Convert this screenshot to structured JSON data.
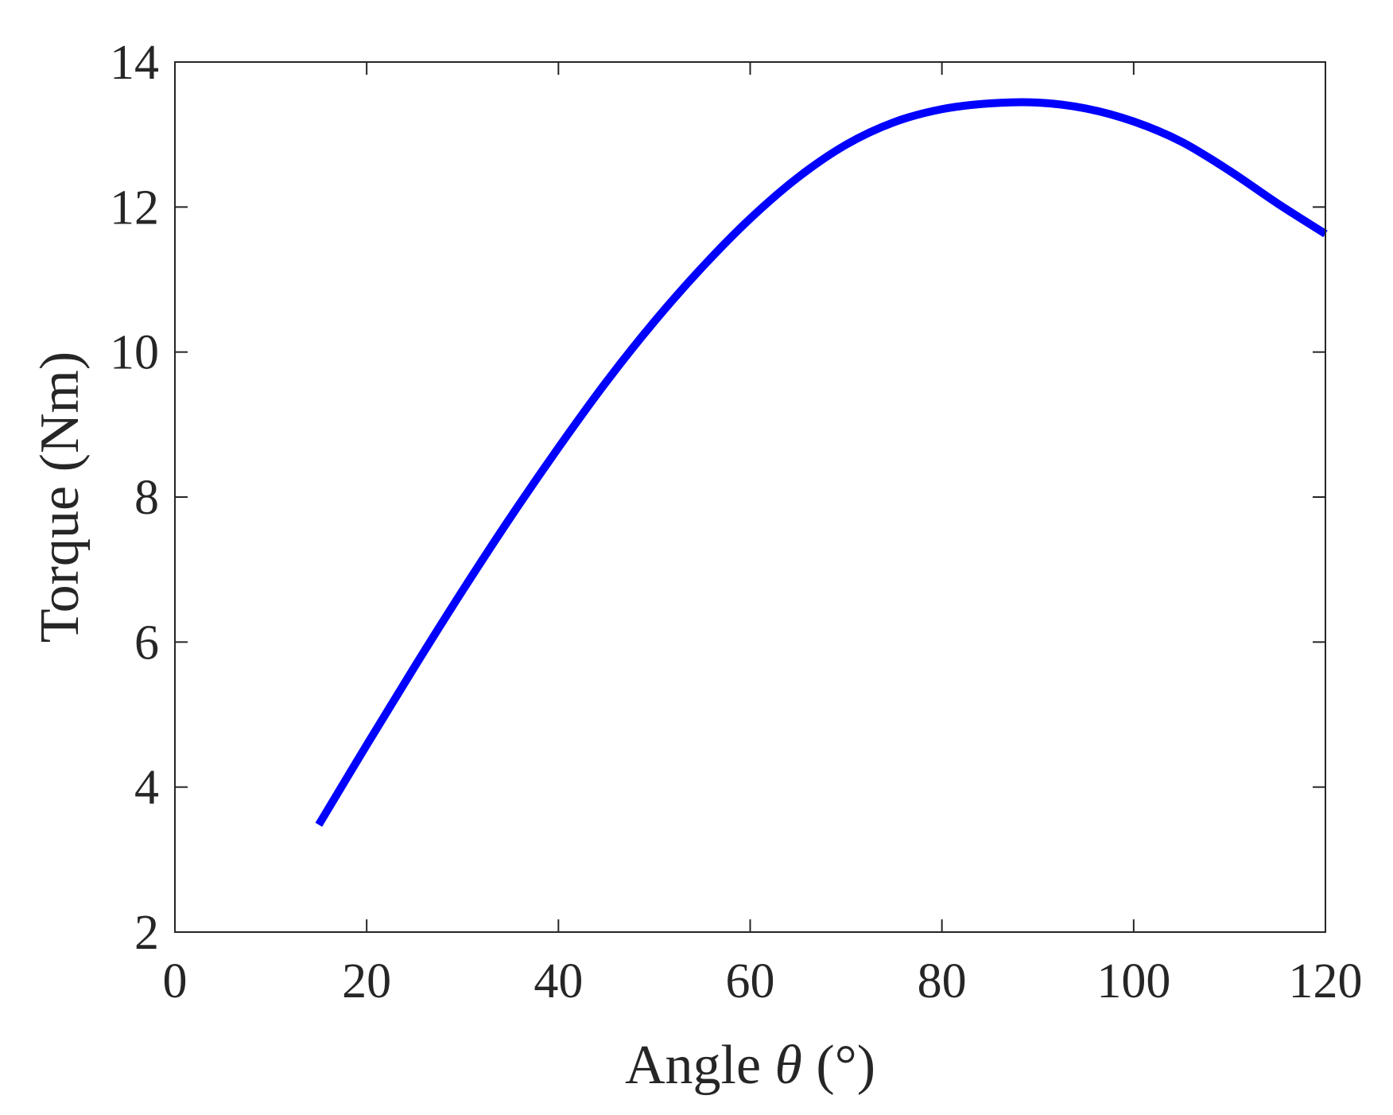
{
  "chart_data": {
    "type": "line",
    "title": "",
    "xlabel": {
      "prefix": "Angle ",
      "symbol": "θ",
      "suffix": " (°)"
    },
    "ylabel": "Torque (Nm)",
    "xlim": [
      0,
      120
    ],
    "ylim": [
      2,
      14
    ],
    "xticks": [
      0,
      20,
      40,
      60,
      80,
      100,
      120
    ],
    "yticks": [
      2,
      4,
      6,
      8,
      10,
      12,
      14
    ],
    "grid": false,
    "legend": "none",
    "series": [
      {
        "color": "#0000ff",
        "x": [
          15,
          20,
          25,
          30,
          35,
          40,
          45,
          50,
          55,
          60,
          65,
          70,
          75,
          80,
          85,
          90,
          95,
          100,
          105,
          110,
          115,
          120
        ],
        "y": [
          3.48,
          4.58,
          5.66,
          6.71,
          7.72,
          8.68,
          9.59,
          10.42,
          11.17,
          11.84,
          12.41,
          12.86,
          13.17,
          13.35,
          13.43,
          13.44,
          13.36,
          13.18,
          12.9,
          12.5,
          12.05,
          11.63
        ]
      }
    ]
  }
}
